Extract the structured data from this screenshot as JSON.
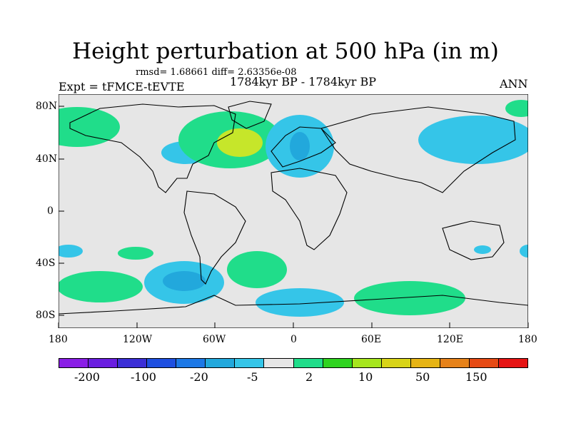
{
  "title": "Height perturbation at 500 hPa (in m)",
  "stats": "rmsd= 1.68661 diff= 2.63356e-08",
  "period": "1784kyr BP - 1784kyr BP",
  "experiment": "Expt = tFMCE-tEVTE",
  "season": "ANN",
  "axes": {
    "y_ticks": [
      "80N",
      "40N",
      "0",
      "40S",
      "80S"
    ],
    "x_ticks": [
      "180",
      "120W",
      "60W",
      "0",
      "60E",
      "120E",
      "180"
    ],
    "lon_range": [
      -180,
      180
    ],
    "lat_range": [
      -90,
      90
    ]
  },
  "colorbar": {
    "labels": [
      "-200",
      "-100",
      "-20",
      "-5",
      "2",
      "10",
      "50",
      "150"
    ],
    "colors": [
      "#8a1ee6",
      "#6a1ee0",
      "#3b2ed6",
      "#1e4fe0",
      "#1c78e6",
      "#22a8dc",
      "#35c5e8",
      "#e6e6e6",
      "#20dd8a",
      "#2fd320",
      "#a6e61e",
      "#d8d418",
      "#e6b414",
      "#e6821a",
      "#e64a14",
      "#e61414"
    ]
  },
  "palette": {
    "ocean_neutral": "#e6e6e6",
    "green": "#20dd8a",
    "cyan": "#35c5e8",
    "yellowgreen": "#c6e62a",
    "blue": "#22a8dc"
  }
}
